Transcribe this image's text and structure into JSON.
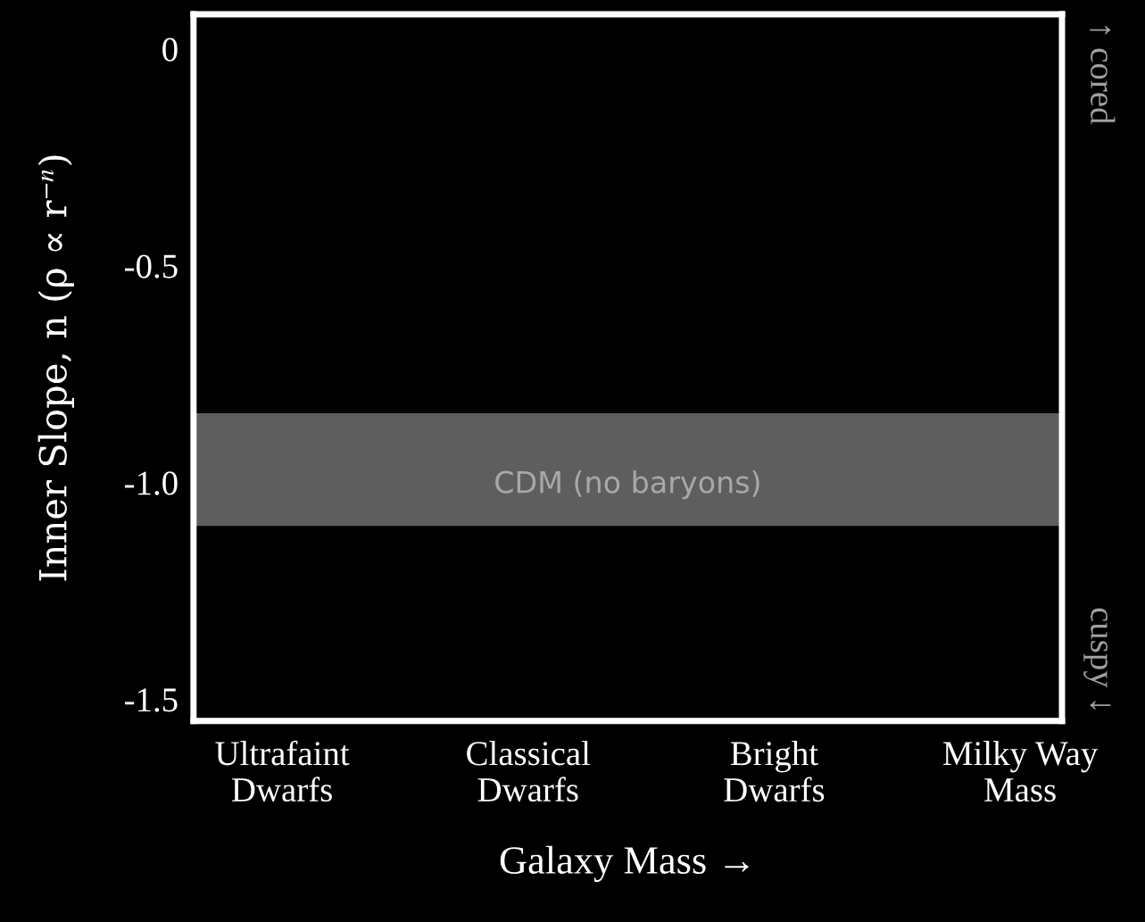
{
  "chart_data": {
    "type": "scatter",
    "values": [
      null,
      null,
      null,
      null
    ],
    "categories": [
      "Ultrafaint\nDwarfs",
      "Classical\nDwarfs",
      "Bright\nDwarfs",
      "Milky Way\nMass"
    ],
    "xlabel": "Galaxy Mass →",
    "ylabel": "Inner Slope, n (ρ ∝ r$^{−n}$)",
    "ylim": [
      -1.55,
      0.08
    ],
    "yticks": [
      {
        "value": 0,
        "label": "0"
      },
      {
        "value": -0.5,
        "label": "-0.5"
      },
      {
        "value": -1.0,
        "label": "-1.0"
      },
      {
        "value": -1.5,
        "label": "-1.5"
      }
    ],
    "bands": [
      {
        "axis": "y",
        "from": -0.84,
        "to": -1.1,
        "label": "CDM (no baryons)",
        "color": "#5e5e5e"
      }
    ],
    "annotations": [
      "↑ cored",
      "cuspy ↓"
    ],
    "legend": false
  }
}
